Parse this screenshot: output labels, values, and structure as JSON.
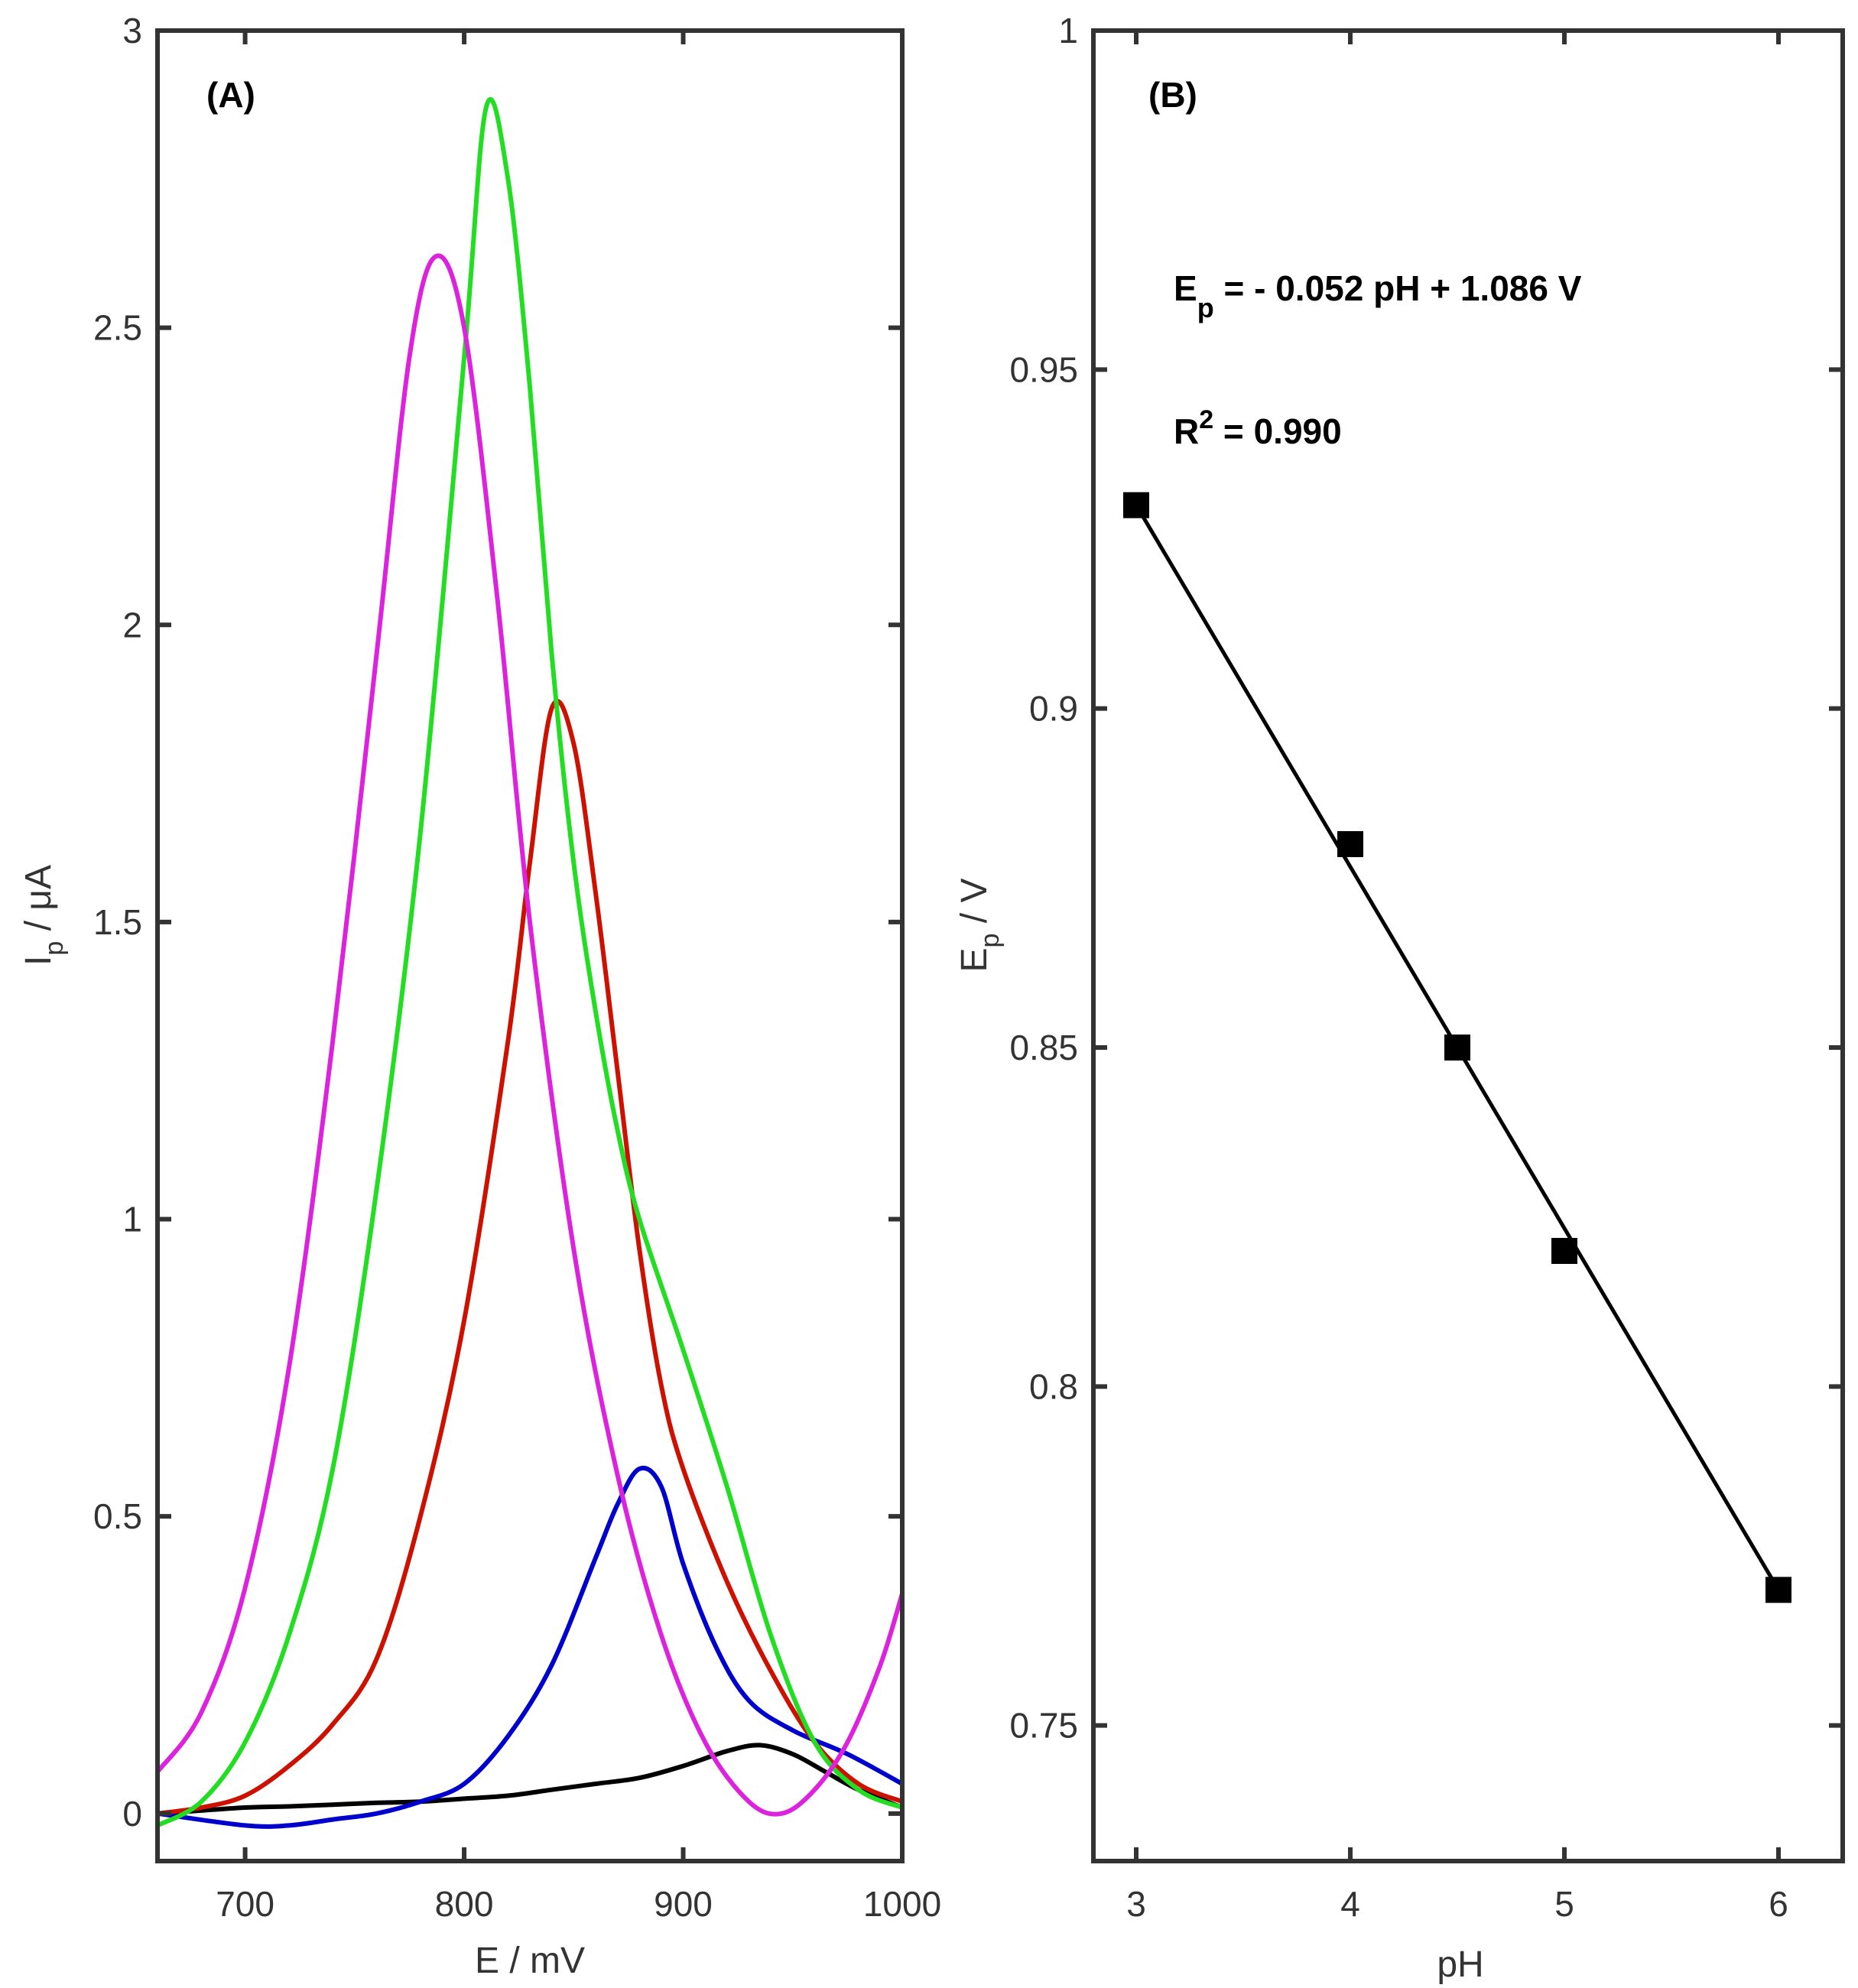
{
  "chart_data": [
    {
      "type": "line",
      "panel_label": "(A)",
      "xlabel": "E / mV",
      "ylabel_main": "I",
      "ylabel_sub": "p",
      "ylabel_rest": " / μA",
      "xlim": [
        660,
        1000
      ],
      "ylim": [
        -0.08,
        3
      ],
      "xticks": [
        700,
        800,
        900,
        1000
      ],
      "yticks": [
        0,
        0.5,
        1,
        1.5,
        2,
        2.5,
        3
      ],
      "xtick_labels": [
        "700",
        "800",
        "900",
        "1000"
      ],
      "ytick_labels": [
        "0",
        "0.5",
        "1",
        "1.5",
        "2",
        "2.5",
        "3"
      ],
      "legend": "none",
      "grid": false,
      "series": [
        {
          "color": "#000000",
          "x": [
            660,
            680,
            700,
            720,
            740,
            760,
            780,
            800,
            820,
            840,
            860,
            880,
            900,
            920,
            935,
            950,
            965,
            980,
            1000
          ],
          "y": [
            0.0,
            0.005,
            0.01,
            0.012,
            0.015,
            0.018,
            0.02,
            0.025,
            0.03,
            0.04,
            0.05,
            0.06,
            0.08,
            0.105,
            0.115,
            0.1,
            0.07,
            0.04,
            0.01
          ]
        },
        {
          "color": "#0000cc",
          "x": [
            660,
            700,
            720,
            740,
            760,
            780,
            800,
            820,
            840,
            860,
            870,
            880,
            890,
            900,
            915,
            930,
            950,
            975,
            1000
          ],
          "y": [
            0.0,
            -0.02,
            -0.02,
            -0.01,
            0.0,
            0.02,
            0.05,
            0.13,
            0.25,
            0.43,
            0.52,
            0.58,
            0.55,
            0.42,
            0.28,
            0.19,
            0.14,
            0.1,
            0.05
          ]
        },
        {
          "color": "#cc1100",
          "x": [
            660,
            680,
            700,
            720,
            740,
            760,
            780,
            800,
            820,
            830,
            840,
            850,
            860,
            870,
            880,
            890,
            900,
            920,
            940,
            960,
            980,
            1000
          ],
          "y": [
            0.0,
            0.01,
            0.03,
            0.08,
            0.15,
            0.26,
            0.5,
            0.83,
            1.3,
            1.6,
            1.86,
            1.8,
            1.55,
            1.25,
            0.95,
            0.72,
            0.58,
            0.39,
            0.24,
            0.12,
            0.05,
            0.02
          ]
        },
        {
          "color": "#22dd22",
          "x": [
            660,
            680,
            700,
            720,
            740,
            760,
            780,
            800,
            810,
            820,
            830,
            840,
            850,
            860,
            870,
            880,
            900,
            920,
            940,
            960,
            980,
            1000
          ],
          "y": [
            -0.02,
            0.02,
            0.12,
            0.3,
            0.58,
            1.05,
            1.65,
            2.45,
            2.87,
            2.75,
            2.4,
            1.95,
            1.6,
            1.35,
            1.15,
            1.0,
            0.78,
            0.55,
            0.3,
            0.12,
            0.04,
            0.01
          ]
        },
        {
          "color": "#dd22dd",
          "x": [
            660,
            680,
            700,
            720,
            740,
            760,
            775,
            787,
            800,
            815,
            830,
            850,
            870,
            890,
            910,
            930,
            945,
            960,
            975,
            990,
            1000
          ],
          "y": [
            0.07,
            0.17,
            0.38,
            0.75,
            1.3,
            1.95,
            2.45,
            2.62,
            2.5,
            2.05,
            1.5,
            0.95,
            0.57,
            0.3,
            0.12,
            0.02,
            0.0,
            0.04,
            0.12,
            0.25,
            0.37
          ]
        }
      ]
    },
    {
      "type": "scatter",
      "panel_label": "(B)",
      "xlabel": "pH",
      "ylabel_main": "E",
      "ylabel_sub": "p",
      "ylabel_rest": " / V",
      "xlim": [
        2.8,
        6.3
      ],
      "ylim": [
        0.73,
        1.0
      ],
      "xticks": [
        3,
        4,
        5,
        6
      ],
      "yticks": [
        0.75,
        0.8,
        0.85,
        0.9,
        0.95,
        1
      ],
      "xtick_labels": [
        "3",
        "4",
        "5",
        "6"
      ],
      "ytick_labels": [
        "0.75",
        "0.8",
        "0.85",
        "0.9",
        "0.95",
        "1"
      ],
      "legend": "none",
      "grid": false,
      "marker": "square",
      "color": "#000000",
      "x": [
        3,
        4,
        4.5,
        5,
        6
      ],
      "y": [
        0.93,
        0.88,
        0.85,
        0.82,
        0.77
      ],
      "fit_line": {
        "x": [
          3,
          6
        ],
        "y": [
          0.93,
          0.77
        ]
      },
      "annotations": {
        "equation": {
          "main": "E",
          "sub": "p",
          "rest": " = - 0.052 pH + 1.086 V"
        },
        "r2": {
          "main": "R",
          "sup": "2",
          "rest": " = 0.990"
        }
      }
    }
  ]
}
